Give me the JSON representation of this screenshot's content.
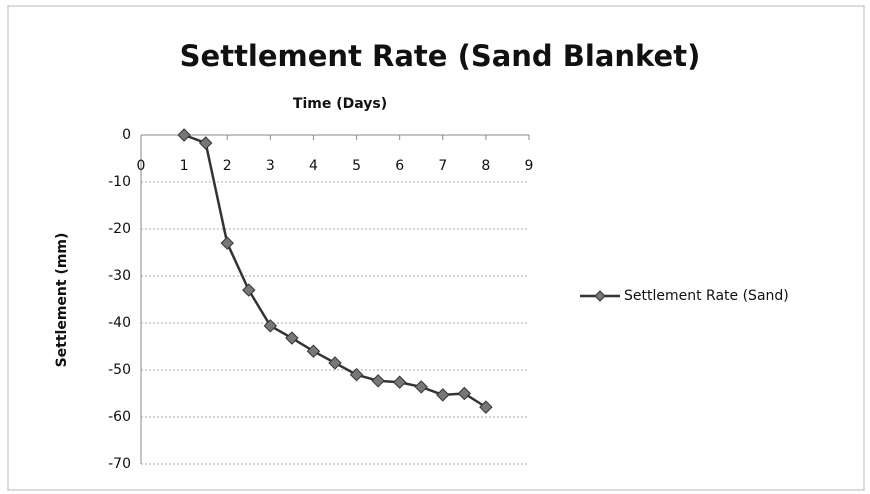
{
  "chart_data": {
    "type": "line",
    "title": "Settlement Rate (Sand Blanket)",
    "x_label": "Time (Days)",
    "y_label": "Settlement (mm)",
    "x": [
      1,
      1.5,
      2,
      2.5,
      3,
      3.5,
      4,
      4.5,
      5,
      5.5,
      6,
      6.5,
      7,
      7.5,
      8
    ],
    "series": [
      {
        "name": "Settlement Rate (Sand)",
        "color": "#333333",
        "values": [
          0,
          -1.7,
          -23,
          -33,
          -40.6,
          -43.2,
          -46,
          -48.5,
          -51,
          -52.3,
          -52.6,
          -53.6,
          -55.3,
          -55,
          -57.9
        ]
      }
    ],
    "xlim": [
      0,
      9
    ],
    "xticks": [
      0,
      1,
      2,
      3,
      4,
      5,
      6,
      7,
      8,
      9
    ],
    "ylim": [
      -70,
      0
    ],
    "yticks": [
      0,
      -10,
      -20,
      -30,
      -40,
      -50,
      -60,
      -70
    ],
    "grid": true,
    "legend": "right"
  }
}
